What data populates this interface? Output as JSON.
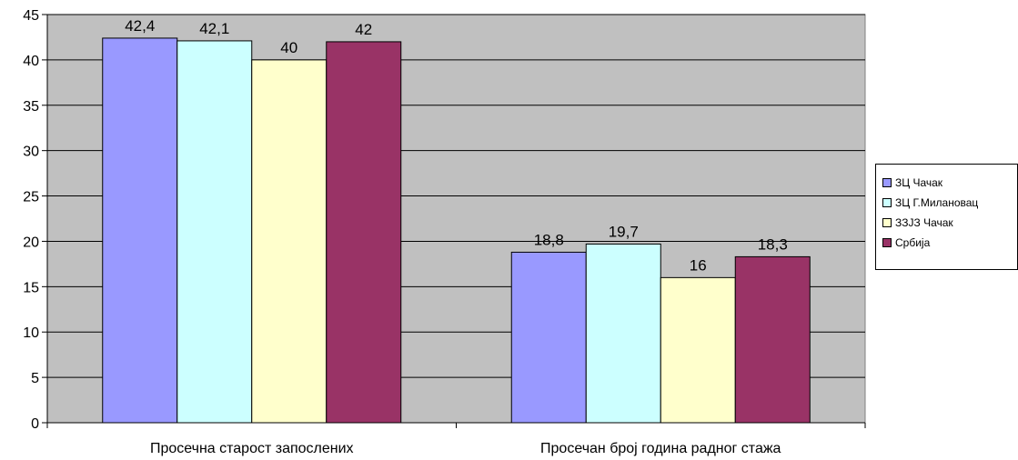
{
  "chart_data": {
    "type": "bar",
    "categories": [
      "Просечна старост запослених",
      "Просечан број година радног стажа"
    ],
    "series": [
      {
        "name": "ЗЦ Чачак",
        "color": "#9999ff",
        "values": [
          42.4,
          18.8
        ],
        "labels": [
          "42,4",
          "18,8"
        ]
      },
      {
        "name": "ЗЦ Г.Милановац",
        "color": "#ccffff",
        "values": [
          42.1,
          19.7
        ],
        "labels": [
          "42,1",
          "19,7"
        ]
      },
      {
        "name": "ЗЗЈЗ Чачак",
        "color": "#ffffcc",
        "values": [
          40,
          16
        ],
        "labels": [
          "40",
          "16"
        ]
      },
      {
        "name": "Србија",
        "color": "#993366",
        "values": [
          42,
          18.3
        ],
        "labels": [
          "42",
          "18,3"
        ]
      }
    ],
    "ylim": [
      0,
      45
    ],
    "yticks": [
      0,
      5,
      10,
      15,
      20,
      25,
      30,
      35,
      40,
      45
    ],
    "grid": true,
    "plot_background": "#c0c0c0",
    "legend_position": "right"
  }
}
